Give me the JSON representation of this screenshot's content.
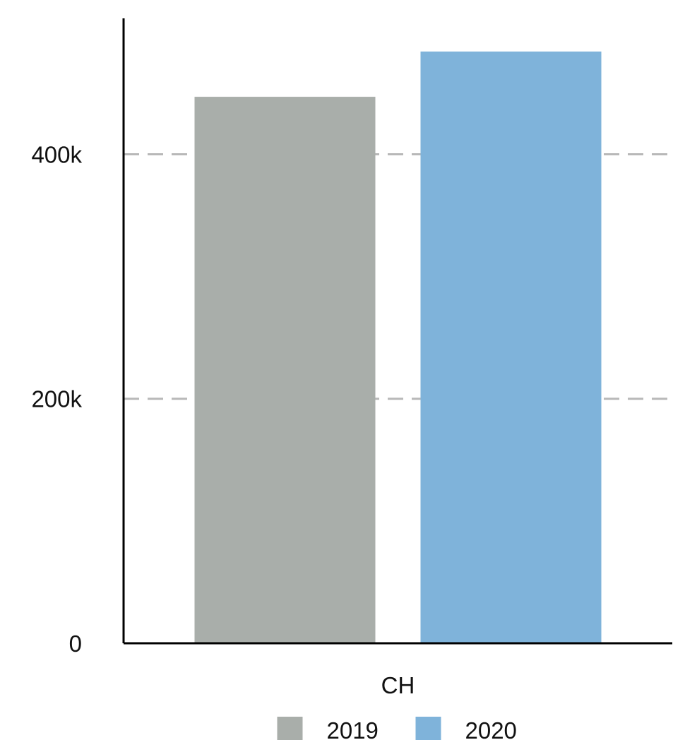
{
  "chart_data": {
    "type": "bar",
    "categories": [
      "CH"
    ],
    "series": [
      {
        "name": "2019",
        "values": [
          447000
        ],
        "color": "#a9aeaa"
      },
      {
        "name": "2020",
        "values": [
          484000
        ],
        "color": "#7fb3da"
      }
    ],
    "ylim": [
      0,
      484000
    ],
    "yticks": [
      {
        "value": 0,
        "label": "0"
      },
      {
        "value": 200000,
        "label": "200k"
      },
      {
        "value": 400000,
        "label": "400k"
      }
    ],
    "grid": true,
    "legend": {
      "position": "bottom-center"
    }
  }
}
